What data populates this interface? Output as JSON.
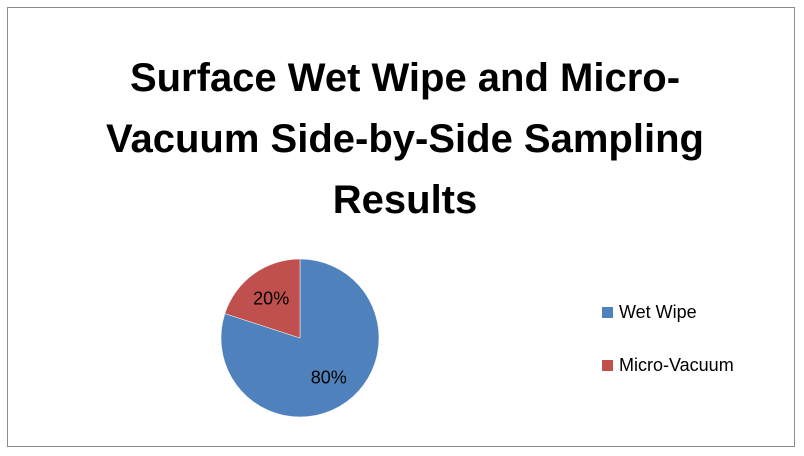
{
  "chart_data": {
    "type": "pie",
    "title": "Surface Wet Wipe and Micro-Vacuum Side-by-Side Sampling Results",
    "categories": [
      "Wet Wipe",
      "Micro-Vacuum"
    ],
    "values": [
      80,
      20
    ],
    "data_labels": [
      "80%",
      "20%"
    ],
    "colors": [
      "#4f81bd",
      "#c0504d"
    ],
    "legend_position": "right"
  }
}
